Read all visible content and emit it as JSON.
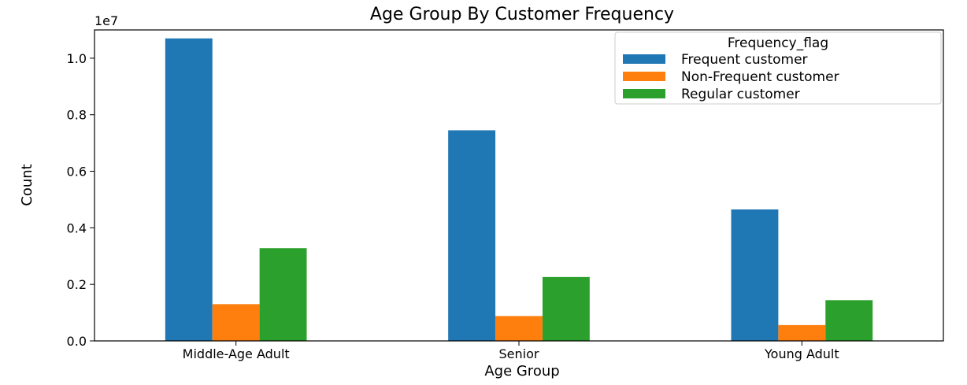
{
  "chart_data": {
    "type": "bar",
    "title": "Age Group By Customer Frequency",
    "xlabel": "Age Group",
    "ylabel": "Count",
    "y_offset_text": "1e7",
    "ylim": [
      0,
      1.1
    ],
    "yticks": [
      0.0,
      0.2,
      0.4,
      0.6,
      0.8,
      1.0
    ],
    "ytick_labels": [
      "0.0",
      "0.2",
      "0.4",
      "0.6",
      "0.8",
      "1.0"
    ],
    "categories": [
      "Middle-Age Adult",
      "Senior",
      "Young Adult"
    ],
    "legend_title": "Frequency_flag",
    "legend_position": "top-right",
    "grid": false,
    "series": [
      {
        "name": "Frequent customer",
        "color": "#1f77b4",
        "values": [
          1.07,
          0.745,
          0.465
        ]
      },
      {
        "name": "Non-Frequent customer",
        "color": "#ff7f0e",
        "values": [
          0.13,
          0.088,
          0.056
        ]
      },
      {
        "name": "Regular customer",
        "color": "#2ca02c",
        "values": [
          0.328,
          0.226,
          0.144
        ]
      }
    ]
  }
}
